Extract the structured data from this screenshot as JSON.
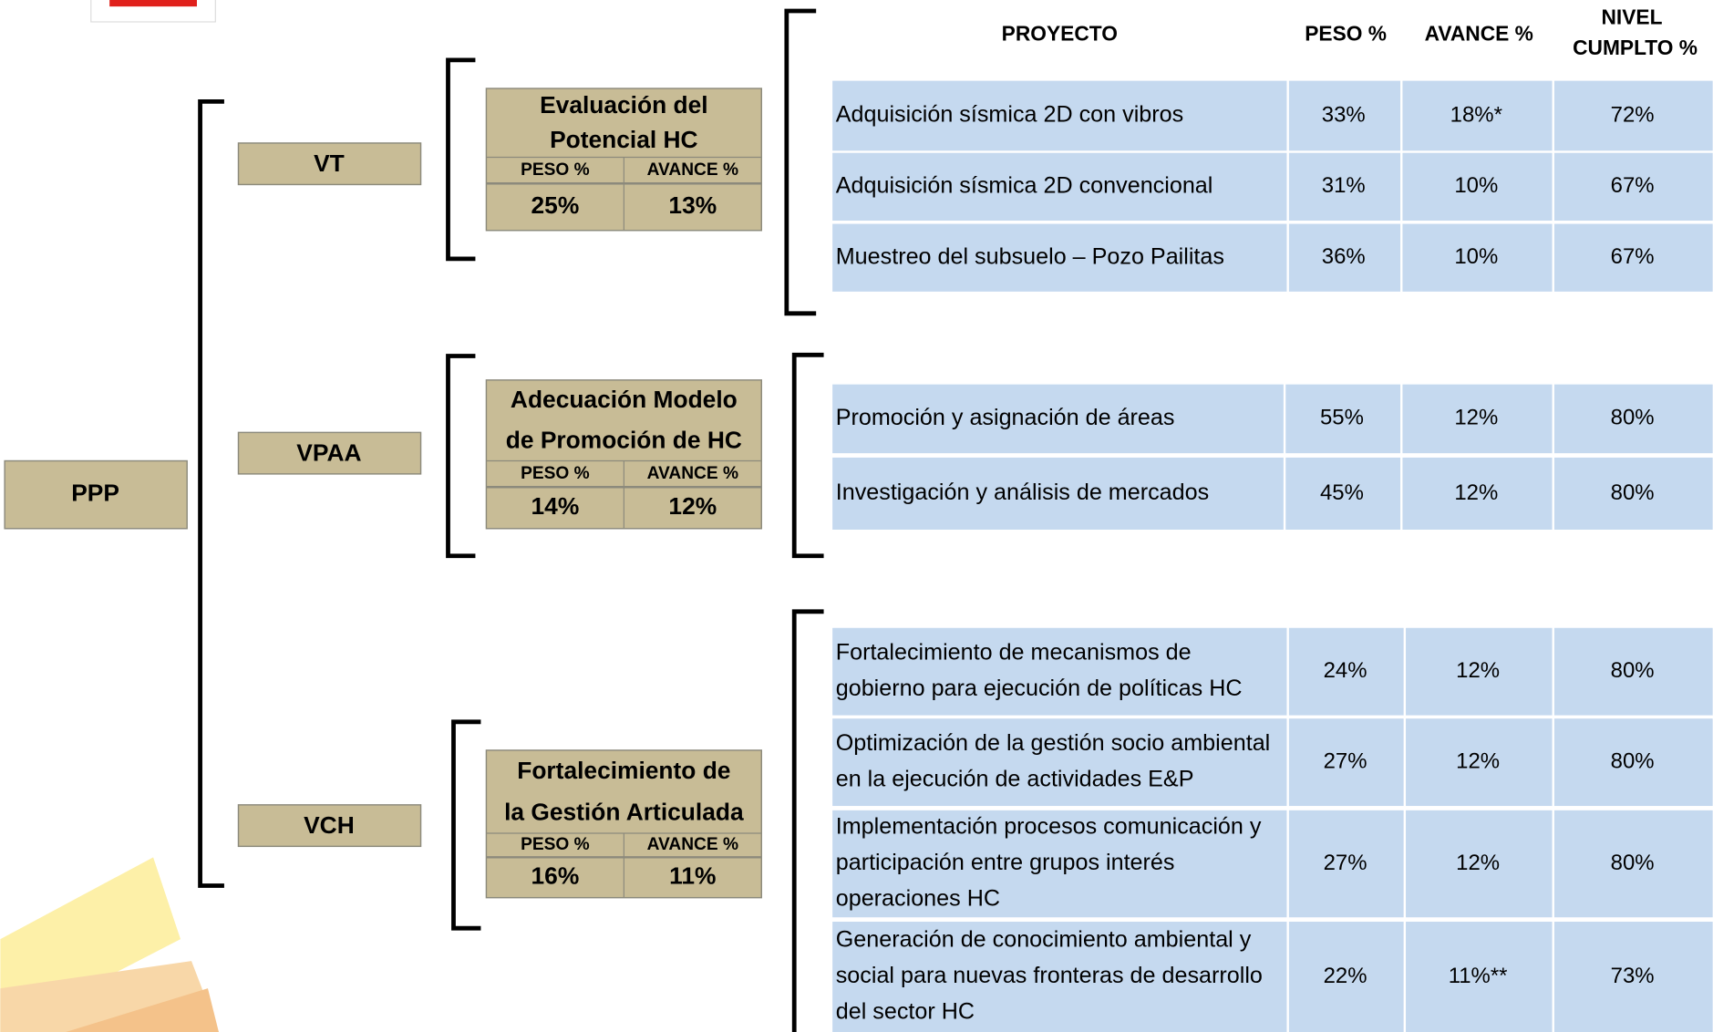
{
  "root": {
    "label": "PPP"
  },
  "header": {
    "project": "PROYECTO",
    "peso": "PESO %",
    "avance": "AVANCE %",
    "nivel": [
      "NIVEL",
      "CUMPLTO %"
    ]
  },
  "branches": [
    {
      "label": "VT",
      "program": {
        "title": [
          "Evaluación del",
          "Potencial HC"
        ],
        "peso_label": "PESO %",
        "avance_label": "AVANCE %",
        "peso": "25%",
        "avance": "13%"
      },
      "rows": [
        {
          "name": [
            "Adquisición sísmica 2D con vibros"
          ],
          "peso": "33%",
          "avance": "18%*",
          "nivel": "72%"
        },
        {
          "name": [
            "Adquisición sísmica 2D convencional"
          ],
          "peso": "31%",
          "avance": "10%",
          "nivel": "67%"
        },
        {
          "name": [
            "Muestreo del subsuelo – Pozo Pailitas"
          ],
          "peso": "36%",
          "avance": "10%",
          "nivel": "67%"
        }
      ]
    },
    {
      "label": "VPAA",
      "program": {
        "title": [
          "Adecuación Modelo",
          "de Promoción de HC"
        ],
        "peso_label": "PESO %",
        "avance_label": "AVANCE %",
        "peso": "14%",
        "avance": "12%"
      },
      "rows": [
        {
          "name": [
            "Promoción y asignación de áreas"
          ],
          "peso": "55%",
          "avance": "12%",
          "nivel": "80%"
        },
        {
          "name": [
            "Investigación y análisis de mercados"
          ],
          "peso": "45%",
          "avance": "12%",
          "nivel": "80%"
        }
      ]
    },
    {
      "label": "VCH",
      "program": {
        "title": [
          "Fortalecimiento de",
          "la Gestión Articulada"
        ],
        "peso_label": "PESO %",
        "avance_label": "AVANCE %",
        "peso": "16%",
        "avance": "11%"
      },
      "rows": [
        {
          "name": [
            "Fortalecimiento de mecanismos de",
            "gobierno para ejecución de políticas HC"
          ],
          "peso": "24%",
          "avance": "12%",
          "nivel": "80%"
        },
        {
          "name": [
            "Optimización de la gestión socio ambiental",
            "en la ejecución de actividades E&P"
          ],
          "peso": "27%",
          "avance": "12%",
          "nivel": "80%"
        },
        {
          "name": [
            "Implementación procesos comunicación y",
            "participación entre grupos interés",
            "operaciones HC"
          ],
          "peso": "27%",
          "avance": "12%",
          "nivel": "80%"
        },
        {
          "name": [
            "Generación de conocimiento ambiental y",
            "social para nuevas fronteras de desarrollo",
            "del sector HC"
          ],
          "peso": "22%",
          "avance": "11%**",
          "nivel": "73%"
        }
      ]
    }
  ]
}
